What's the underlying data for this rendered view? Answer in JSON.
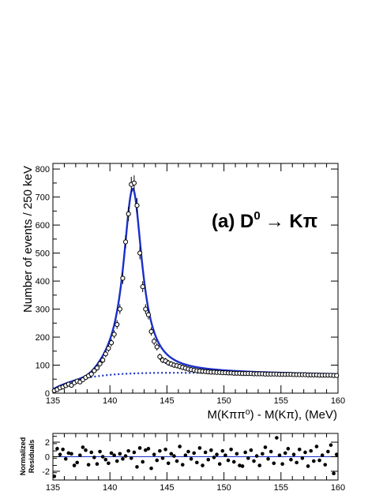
{
  "chart_data": [
    {
      "type": "scatter",
      "title": "",
      "annotation": {
        "prefix": "(a) D",
        "sup": "0",
        "arrow": "→",
        "suffix": " Kπ"
      },
      "xlabel": "M(Kππ⁰) - M(Kπ), (MeV)",
      "ylabel": "Number of events / 250 keV",
      "xlim": [
        135,
        160
      ],
      "ylim": [
        0,
        820
      ],
      "xticks": [
        135,
        140,
        145,
        150,
        155,
        160
      ],
      "yticks": [
        0,
        100,
        200,
        300,
        400,
        500,
        600,
        700,
        800
      ],
      "grid": false,
      "colors": {
        "fit": "#1a2fc7",
        "points": "#000000"
      },
      "series": [
        {
          "kind": "data-points",
          "marker": "open-circle",
          "x": [
            135.125,
            135.375,
            135.625,
            135.875,
            136.125,
            136.375,
            136.625,
            136.875,
            137.125,
            137.375,
            137.625,
            137.875,
            138.125,
            138.375,
            138.625,
            138.875,
            139.125,
            139.375,
            139.625,
            139.875,
            140.125,
            140.375,
            140.625,
            140.875,
            141.125,
            141.375,
            141.625,
            141.875,
            142.125,
            142.375,
            142.625,
            142.875,
            143.125,
            143.375,
            143.625,
            143.875,
            144.125,
            144.375,
            144.625,
            144.875,
            145.125,
            145.375,
            145.625,
            145.875,
            146.125,
            146.375,
            146.625,
            146.875,
            147.125,
            147.375,
            147.625,
            147.875,
            148.125,
            148.375,
            148.625,
            148.875,
            149.125,
            149.375,
            149.625,
            149.875,
            150.125,
            150.375,
            150.625,
            150.875,
            151.125,
            151.375,
            151.625,
            151.875,
            152.125,
            152.375,
            152.625,
            152.875,
            153.125,
            153.375,
            153.625,
            153.875,
            154.125,
            154.375,
            154.625,
            154.875,
            155.125,
            155.375,
            155.625,
            155.875,
            156.125,
            156.375,
            156.625,
            156.875,
            157.125,
            157.375,
            157.625,
            157.875,
            158.125,
            158.375,
            158.625,
            158.875,
            159.125,
            159.375,
            159.625,
            159.875
          ],
          "y": [
            9,
            13,
            19,
            22,
            27,
            32,
            28,
            37,
            43,
            40,
            48,
            56,
            62,
            68,
            80,
            90,
            105,
            118,
            140,
            160,
            180,
            210,
            245,
            300,
            410,
            540,
            640,
            745,
            750,
            670,
            500,
            380,
            300,
            280,
            220,
            185,
            165,
            130,
            118,
            115,
            108,
            104,
            100,
            98,
            95,
            92,
            89,
            86,
            84,
            82,
            80,
            79,
            78,
            77,
            76,
            75,
            75,
            74,
            74,
            73,
            73,
            72,
            72,
            71,
            71,
            71,
            70,
            70,
            70,
            70,
            69,
            69,
            69,
            69,
            68,
            68,
            68,
            68,
            68,
            67,
            67,
            67,
            67,
            67,
            66,
            66,
            66,
            66,
            66,
            65,
            65,
            65,
            65,
            64,
            64,
            64,
            64,
            64,
            63,
            63
          ]
        },
        {
          "kind": "fit-total",
          "style": "solid",
          "color": "#1a2fc7"
        },
        {
          "kind": "fit-background",
          "style": "dotted",
          "color": "#1a2fc7"
        }
      ]
    },
    {
      "type": "scatter",
      "title": "",
      "ylabel": "Normalized Residuals",
      "xlim": [
        135,
        160
      ],
      "ylim": [
        -3.2,
        3.2
      ],
      "xticks": [
        135,
        140,
        145,
        150,
        155,
        160
      ],
      "yticks": [
        -2,
        0,
        2
      ],
      "grid": false,
      "zero_line_color": "#1a2fc7",
      "series": [
        {
          "kind": "residuals",
          "marker": "filled-circle",
          "x": [
            135.125,
            135.375,
            135.625,
            135.875,
            136.125,
            136.375,
            136.625,
            136.875,
            137.125,
            137.375,
            137.625,
            137.875,
            138.125,
            138.375,
            138.625,
            138.875,
            139.125,
            139.375,
            139.625,
            139.875,
            140.125,
            140.375,
            140.625,
            140.875,
            141.125,
            141.375,
            141.625,
            141.875,
            142.125,
            142.375,
            142.625,
            142.875,
            143.125,
            143.375,
            143.625,
            143.875,
            144.125,
            144.375,
            144.625,
            144.875,
            145.125,
            145.375,
            145.625,
            145.875,
            146.125,
            146.375,
            146.625,
            146.875,
            147.125,
            147.375,
            147.625,
            147.875,
            148.125,
            148.375,
            148.625,
            148.875,
            149.125,
            149.375,
            149.625,
            149.875,
            150.125,
            150.375,
            150.625,
            150.875,
            151.125,
            151.375,
            151.625,
            151.875,
            152.125,
            152.375,
            152.625,
            152.875,
            153.125,
            153.375,
            153.625,
            153.875,
            154.125,
            154.375,
            154.625,
            154.875,
            155.125,
            155.375,
            155.625,
            155.875,
            156.125,
            156.375,
            156.625,
            156.875,
            157.125,
            157.375,
            157.625,
            157.875,
            158.125,
            158.375,
            158.625,
            158.875,
            159.125,
            159.375,
            159.625,
            159.875
          ],
          "y": [
            -2.7,
            1.1,
            0.3,
            1.0,
            -0.3,
            0.5,
            0.4,
            -1.2,
            -0.8,
            0.2,
            1.3,
            0.9,
            -1.1,
            0.6,
            -0.1,
            -1.0,
            0.7,
            0.0,
            -0.4,
            -0.9,
            0.5,
            0.2,
            -0.6,
            0.4,
            -0.3,
            0.1,
            0.8,
            -0.2,
            0.6,
            -1.4,
            1.2,
            -0.7,
            0.9,
            1.1,
            -1.6,
            0.3,
            -0.5,
            0.8,
            -0.2,
            1.0,
            -0.9,
            0.4,
            0.1,
            -0.6,
            1.4,
            -1.1,
            0.2,
            0.7,
            -0.3,
            0.5,
            -0.8,
            1.2,
            -1.2,
            0.6,
            -0.4,
            0.9,
            -0.1,
            0.3,
            -1.0,
            0.8,
            0.2,
            -0.5,
            1.0,
            -0.7,
            0.4,
            -1.2,
            -1.3,
            0.6,
            -0.2,
            0.9,
            -0.6,
            0.1,
            -1.2,
            0.4,
            1.3,
            -0.3,
            0.7,
            -0.9,
            2.6,
            0.2,
            -1.0,
            0.5,
            1.1,
            -0.4,
            0.3,
            -0.8,
            1.0,
            -0.2,
            0.6,
            -1.3,
            0.8,
            -0.6,
            1.4,
            -0.5,
            0.2,
            -1.1,
            0.7,
            1.6,
            -2.3,
            0.3
          ]
        }
      ]
    }
  ]
}
